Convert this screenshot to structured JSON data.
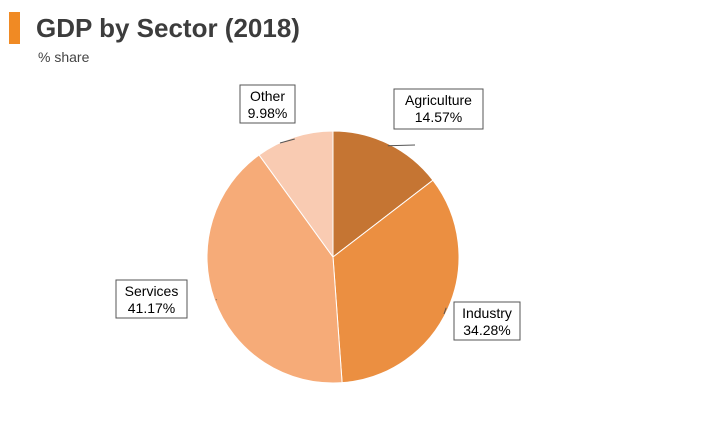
{
  "header": {
    "title": "GDP by Sector (2018)",
    "subtitle": "% share",
    "accent_color": "#f08a24"
  },
  "chart_data": {
    "type": "pie",
    "title": "GDP by Sector (2018)",
    "subtitle": "% share",
    "slices": [
      {
        "label": "Agriculture",
        "value": 14.57,
        "display": "14.57%",
        "color": "#c57533"
      },
      {
        "label": "Industry",
        "value": 34.28,
        "display": "34.28%",
        "color": "#eb8f41"
      },
      {
        "label": "Services",
        "value": 41.17,
        "display": "41.17%",
        "color": "#f6ab78"
      },
      {
        "label": "Other",
        "value": 9.98,
        "display": "9.98%",
        "color": "#f9cbb2"
      }
    ],
    "start_angle_deg": 0,
    "direction": "clockwise",
    "legend": "none",
    "data_labels": "callout-boxes"
  }
}
